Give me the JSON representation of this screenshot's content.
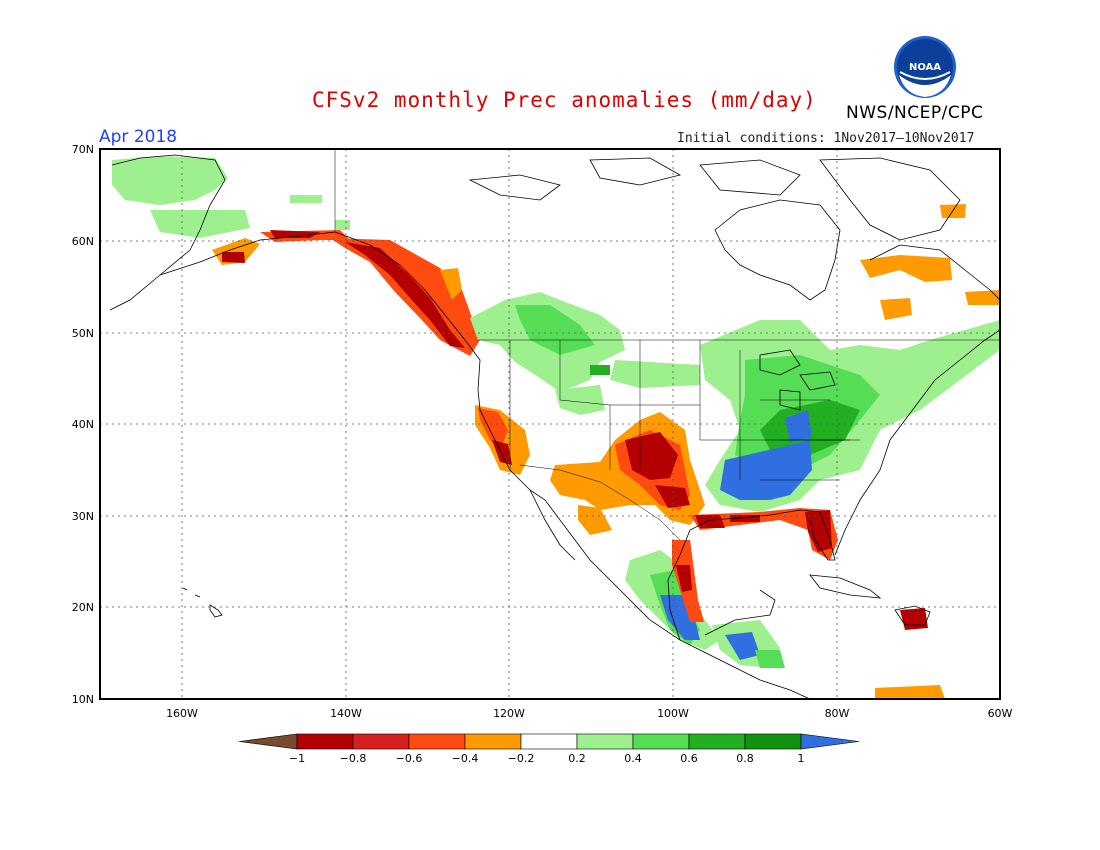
{
  "title": "CFSv2 monthly Prec anomalies (mm/day)",
  "org": "NWS/NCEP/CPC",
  "logo_text": "NOAA",
  "month": "Apr 2018",
  "initial_conditions": "Initial conditions: 1Nov2017–10Nov2017",
  "lat_labels": [
    "70N",
    "60N",
    "50N",
    "40N",
    "30N",
    "20N",
    "10N"
  ],
  "lon_labels": [
    "160W",
    "140W",
    "120W",
    "100W",
    "80W",
    "60W"
  ],
  "legend": {
    "labels": [
      "−1",
      "−0.8",
      "−0.6",
      "−0.4",
      "−0.2",
      "0.2",
      "0.4",
      "0.6",
      "0.8",
      "1"
    ],
    "colors": [
      "#7a4a2e",
      "#b30000",
      "#d62020",
      "#ff4a10",
      "#ff9a00",
      "#ffffff",
      "#9ef08e",
      "#55dd55",
      "#22b022",
      "#119211",
      "#2f6fe0"
    ]
  }
}
